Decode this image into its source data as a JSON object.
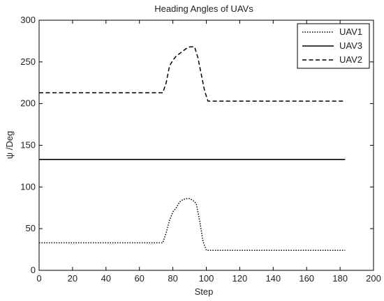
{
  "chart_data": {
    "type": "line",
    "title": "Heading Angles of UAVs",
    "xlabel": "Step",
    "ylabel": "ψ /Deg",
    "xlim": [
      0,
      200
    ],
    "ylim": [
      0,
      300
    ],
    "xticks": [
      0,
      20,
      40,
      60,
      80,
      100,
      120,
      140,
      160,
      180,
      200
    ],
    "yticks": [
      0,
      50,
      100,
      150,
      200,
      250,
      300
    ],
    "grid": false,
    "legend_position": "top-right",
    "series": [
      {
        "name": "UAV1",
        "style": "dotted",
        "color": "#000000",
        "points": [
          [
            0,
            33
          ],
          [
            74,
            33
          ],
          [
            76,
            45
          ],
          [
            78,
            60
          ],
          [
            80,
            70
          ],
          [
            82,
            75
          ],
          [
            84,
            82
          ],
          [
            86,
            85
          ],
          [
            88,
            86
          ],
          [
            90,
            86
          ],
          [
            92,
            84
          ],
          [
            94,
            80
          ],
          [
            96,
            60
          ],
          [
            98,
            35
          ],
          [
            100,
            24
          ],
          [
            183,
            24
          ]
        ]
      },
      {
        "name": "UAV3",
        "style": "solid",
        "color": "#000000",
        "points": [
          [
            0,
            133
          ],
          [
            183,
            133
          ]
        ]
      },
      {
        "name": "UAV2",
        "style": "dashed",
        "color": "#000000",
        "points": [
          [
            0,
            213
          ],
          [
            74,
            213
          ],
          [
            76,
            225
          ],
          [
            78,
            245
          ],
          [
            80,
            252
          ],
          [
            82,
            257
          ],
          [
            84,
            260
          ],
          [
            86,
            263
          ],
          [
            88,
            266
          ],
          [
            90,
            268
          ],
          [
            93,
            268
          ],
          [
            95,
            255
          ],
          [
            97,
            235
          ],
          [
            99,
            215
          ],
          [
            101,
            203
          ],
          [
            183,
            203
          ]
        ]
      }
    ]
  }
}
